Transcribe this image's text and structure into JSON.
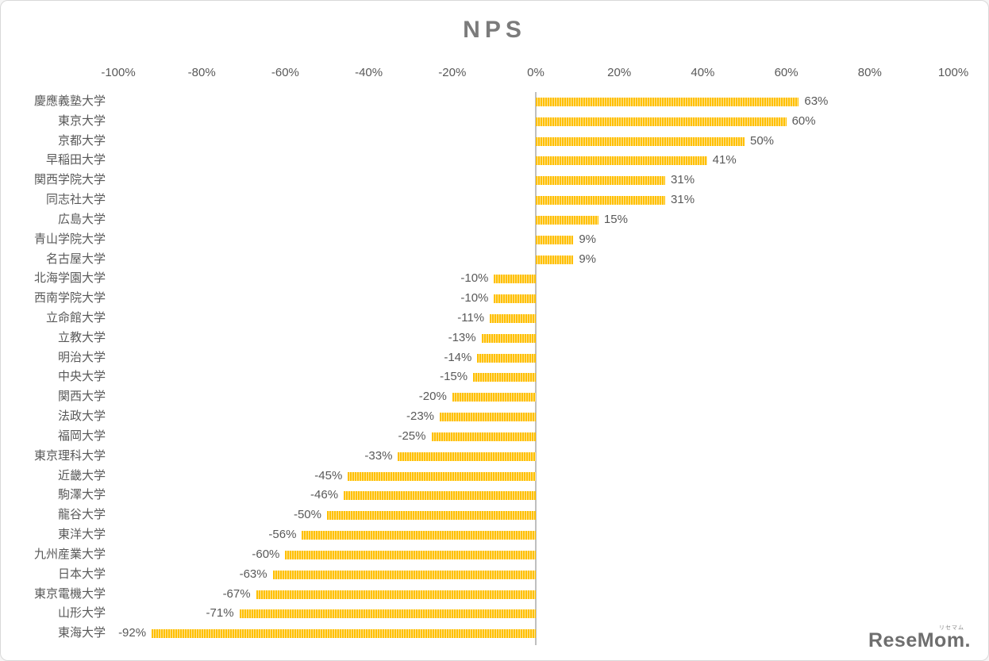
{
  "chart_data": {
    "type": "bar",
    "orientation": "horizontal",
    "title": "NPS",
    "xlabel": "",
    "ylabel": "",
    "xlim": [
      -100,
      100
    ],
    "x_ticks": [
      "-100%",
      "-80%",
      "-60%",
      "-40%",
      "-20%",
      "0%",
      "20%",
      "40%",
      "60%",
      "80%",
      "100%"
    ],
    "grid": false,
    "legend": false,
    "categories": [
      "慶應義塾大学",
      "東京大学",
      "京都大学",
      "早稲田大学",
      "関西学院大学",
      "同志社大学",
      "広島大学",
      "青山学院大学",
      "名古屋大学",
      "北海学園大学",
      "西南学院大学",
      "立命館大学",
      "立教大学",
      "明治大学",
      "中央大学",
      "関西大学",
      "法政大学",
      "福岡大学",
      "東京理科大学",
      "近畿大学",
      "駒澤大学",
      "龍谷大学",
      "東洋大学",
      "九州産業大学",
      "日本大学",
      "東京電機大学",
      "山形大学",
      "東海大学"
    ],
    "values": [
      63,
      60,
      50,
      41,
      31,
      31,
      15,
      9,
      9,
      -10,
      -10,
      -11,
      -13,
      -14,
      -15,
      -20,
      -23,
      -25,
      -33,
      -45,
      -46,
      -50,
      -56,
      -60,
      -63,
      -67,
      -71,
      -92
    ],
    "data_labels": [
      "63%",
      "60%",
      "50%",
      "41%",
      "31%",
      "31%",
      "15%",
      "9%",
      "9%",
      "-10%",
      "-10%",
      "-11%",
      "-13%",
      "-14%",
      "-15%",
      "-20%",
      "-23%",
      "-25%",
      "-33%",
      "-45%",
      "-46%",
      "-50%",
      "-56%",
      "-60%",
      "-63%",
      "-67%",
      "-71%",
      "-92%"
    ],
    "bar_color": "#FFC000",
    "bar_color_light": "#FFE59B",
    "axis_line_color": "#BFBFBF",
    "label_color": "#595959",
    "title_color": "#7B7B7B"
  },
  "watermark": {
    "text": "ReseMom.",
    "small_text": "リセマム"
  }
}
